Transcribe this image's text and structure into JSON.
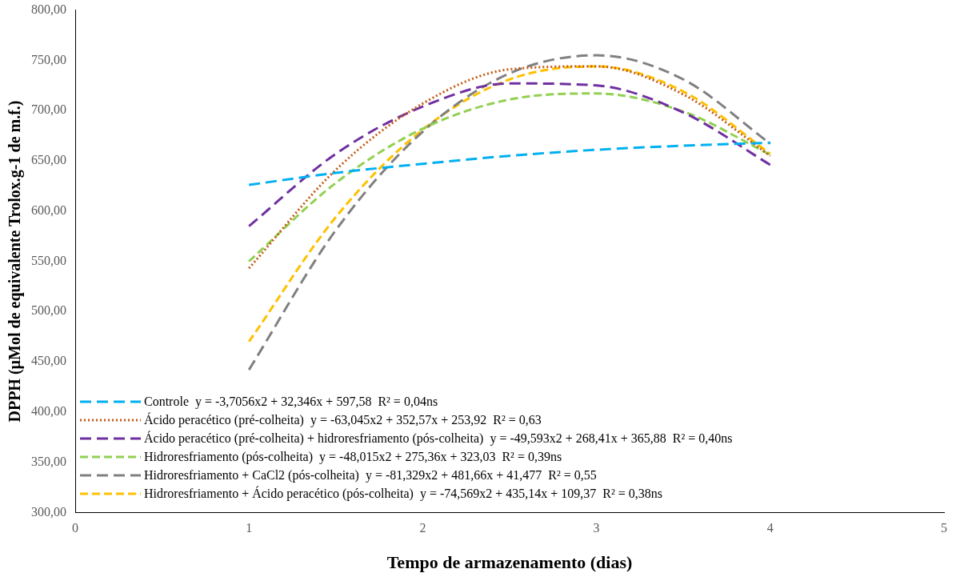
{
  "chart_data": {
    "type": "line",
    "xlabel": "Tempo de armazenamento (dias)",
    "ylabel": "DPPH (µMol de equivalente Trolox.g-1 de m.f.)",
    "x": [
      1,
      1.5,
      2,
      2.5,
      3,
      3.5,
      4
    ],
    "xlim": [
      0,
      5
    ],
    "xticks": [
      0,
      1,
      2,
      3,
      4,
      5
    ],
    "ylim": [
      300,
      800
    ],
    "yticks": [
      {
        "value": 300,
        "label": "300,00"
      },
      {
        "value": 350,
        "label": "350,00"
      },
      {
        "value": 400,
        "label": "400,00"
      },
      {
        "value": 450,
        "label": "450,00"
      },
      {
        "value": 500,
        "label": "500,00"
      },
      {
        "value": 550,
        "label": "550,00"
      },
      {
        "value": 600,
        "label": "600,00"
      },
      {
        "value": 650,
        "label": "650,00"
      },
      {
        "value": 700,
        "label": "700,00"
      },
      {
        "value": 750,
        "label": "750,00"
      },
      {
        "value": 800,
        "label": "800,00"
      }
    ],
    "grid": false,
    "legend": "bottom left",
    "marker": "none",
    "series": [
      {
        "name": "Controle  y = -3,7056x2 + 32,346x + 597,58  R² = 0,04ns",
        "color": "#00b0f0",
        "line_style": "dashed",
        "values": [
          626,
          638,
          647,
          655,
          661,
          665,
          668
        ]
      },
      {
        "name": "Ácido peracético (pré-colheita)  y = -63,045x2 + 352,57x + 253,92  R² = 0,63",
        "color": "#c55a11",
        "line_style": "dotted",
        "values": [
          543,
          641,
          707,
          741,
          744,
          716,
          655
        ]
      },
      {
        "name": "Ácido peracético (pré-colheita) + hidroresfriamento (pós-colheita)  y = -49,593x2 + 268,41x + 365,88  R² = 0,40ns",
        "color": "#7030a0",
        "line_style": "dashed",
        "values": [
          585,
          657,
          704,
          727,
          725,
          698,
          646
        ]
      },
      {
        "name": "Hidroresfriamento (pós-colheita)  y = -48,015x2 + 275,36x + 323,03  R² = 0,39ns",
        "color": "#92d050",
        "line_style": "dashed",
        "values": [
          550,
          628,
          682,
          711,
          717,
          699,
          656
        ]
      },
      {
        "name": "Hidroresfriamento + CaCl2 (pós-colheita)  y = -81,329x2 + 481,66x + 41,477  R² = 0,55",
        "color": "#808080",
        "line_style": "dashed",
        "values": [
          442,
          581,
          679,
          737,
          755,
          731,
          667
        ]
      },
      {
        "name": "Hidroresfriamento + Ácido peracético (pós-colheita)  y = -74,569x2 + 435,14x + 109,37  R² = 0,38ns",
        "color": "#ffc000",
        "line_style": "dashed",
        "values": [
          470,
          594,
          681,
          731,
          744,
          719,
          657
        ]
      }
    ]
  }
}
